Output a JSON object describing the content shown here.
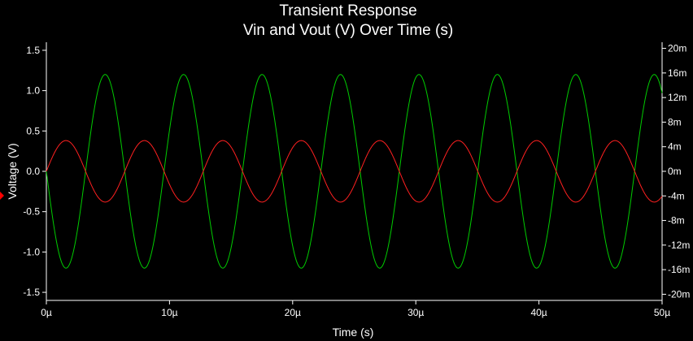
{
  "chart_data": {
    "type": "line",
    "title": "Transient Response",
    "subtitle": "Vin and Vout (V) Over Time (s)",
    "xlabel": "Time (s)",
    "ylabel": "Voltage (V)",
    "xlim": [
      0,
      50
    ],
    "ylim": [
      -1.6,
      1.6
    ],
    "y2lim": [
      -21,
      21
    ],
    "grid": false,
    "legend": "none",
    "x_ticks": [
      {
        "value": 0,
        "label": "0µ"
      },
      {
        "value": 10,
        "label": "10µ"
      },
      {
        "value": 20,
        "label": "20µ"
      },
      {
        "value": 30,
        "label": "30µ"
      },
      {
        "value": 40,
        "label": "40µ"
      },
      {
        "value": 50,
        "label": "50µ"
      }
    ],
    "y_ticks": [
      {
        "value": 1.5,
        "label": "1.5"
      },
      {
        "value": 1.0,
        "label": "1.0"
      },
      {
        "value": 0.5,
        "label": "0.5"
      },
      {
        "value": 0.0,
        "label": "0.0"
      },
      {
        "value": -0.5,
        "label": "-0.5"
      },
      {
        "value": -1.0,
        "label": "-1.0"
      },
      {
        "value": -1.5,
        "label": "-1.5"
      }
    ],
    "y2_ticks": [
      {
        "value": 20,
        "label": "20m"
      },
      {
        "value": 16,
        "label": "16m"
      },
      {
        "value": 12,
        "label": "12m"
      },
      {
        "value": 8,
        "label": "8m"
      },
      {
        "value": 4,
        "label": "4m"
      },
      {
        "value": 0,
        "label": "0m"
      },
      {
        "value": -4,
        "label": "-4m"
      },
      {
        "value": -8,
        "label": "-8m"
      },
      {
        "value": -12,
        "label": "-12m"
      },
      {
        "value": -16,
        "label": "-16m"
      },
      {
        "value": -20,
        "label": "-20m"
      }
    ],
    "series": [
      {
        "axis": "left",
        "color": "#00cc00",
        "frequency_cycles_per_unit": 0.157,
        "x": [
          0,
          1.6,
          4.8,
          8.0,
          11.1,
          14.3,
          17.5,
          20.7,
          23.9,
          27.1,
          30.3,
          33.4,
          36.6,
          39.8,
          43.0,
          46.2,
          49.3,
          50.0
        ],
        "y": [
          0.0,
          -1.2,
          1.14,
          -1.2,
          1.14,
          -1.2,
          1.14,
          -1.2,
          1.14,
          -1.2,
          1.14,
          -1.2,
          1.14,
          -1.2,
          1.14,
          -1.2,
          1.14,
          0.6
        ]
      },
      {
        "axis": "right",
        "color": "#ff2020",
        "frequency_cycles_per_unit": 0.157,
        "x": [
          0,
          1.6,
          4.8,
          8.0,
          11.1,
          14.3,
          17.5,
          20.7,
          23.9,
          27.1,
          30.3,
          33.4,
          36.6,
          39.8,
          43.0,
          46.2,
          49.3,
          50.0
        ],
        "y": [
          0.0,
          4.9,
          -5.0,
          4.9,
          -5.0,
          4.9,
          -5.0,
          4.9,
          -5.0,
          4.9,
          -5.0,
          4.9,
          -5.0,
          4.9,
          -5.0,
          4.9,
          -5.0,
          -2.5
        ]
      }
    ]
  }
}
